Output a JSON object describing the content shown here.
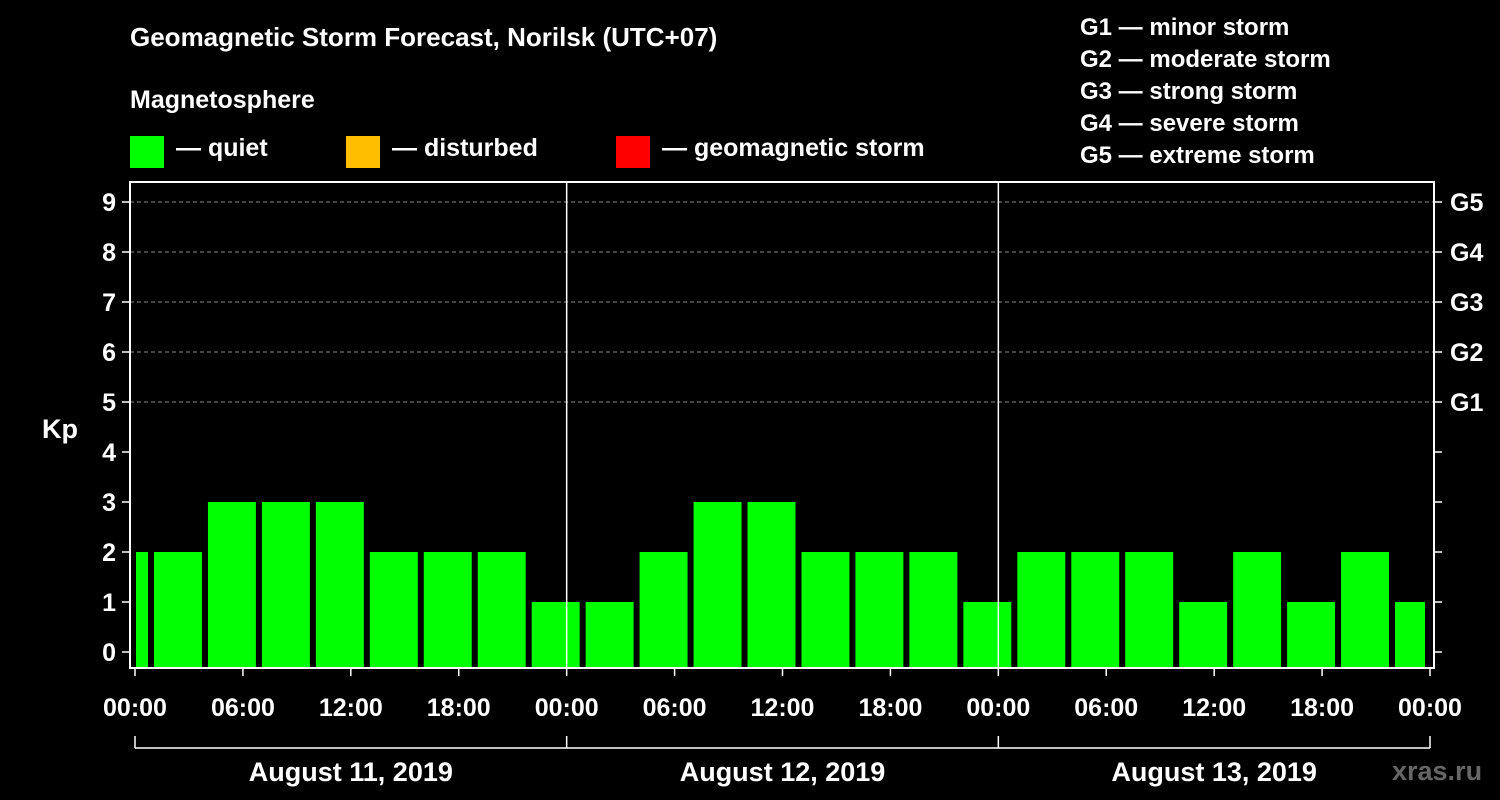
{
  "header": {
    "title": "Geomagnetic Storm Forecast, Norilsk (UTC+07)",
    "subtitle": "Magnetosphere"
  },
  "legend": [
    {
      "label": "— quiet",
      "color": "#00ff00"
    },
    {
      "label": "— disturbed",
      "color": "#ffbf00"
    },
    {
      "label": "— geomagnetic storm",
      "color": "#ff0000"
    }
  ],
  "g_levels": [
    "G1 — minor storm",
    "G2 — moderate storm",
    "G3 — strong storm",
    "G4 — severe storm",
    "G5 — extreme storm"
  ],
  "watermark": "xras.ru",
  "chart_data": {
    "type": "bar",
    "title": "Geomagnetic Storm Forecast, Norilsk (UTC+07)",
    "ylabel": "Kp",
    "ylim": [
      0,
      9
    ],
    "yticks": [
      "0",
      "1",
      "2",
      "3",
      "4",
      "5",
      "6",
      "7",
      "8",
      "9"
    ],
    "right_axis_labels": [
      {
        "kp": 5,
        "label": "G1"
      },
      {
        "kp": 6,
        "label": "G2"
      },
      {
        "kp": 7,
        "label": "G3"
      },
      {
        "kp": 8,
        "label": "G4"
      },
      {
        "kp": 9,
        "label": "G5"
      }
    ],
    "x_range_hours": [
      0,
      72
    ],
    "x_tick_labels": [
      "00:00",
      "06:00",
      "12:00",
      "18:00",
      "00:00",
      "06:00",
      "12:00",
      "18:00",
      "00:00",
      "06:00",
      "12:00",
      "18:00",
      "00:00"
    ],
    "days": [
      "August 11, 2019",
      "August 12, 2019",
      "August 13, 2019"
    ],
    "bars": [
      {
        "start_hour": 0,
        "end_hour": 1,
        "kp": 2,
        "level": "quiet"
      },
      {
        "start_hour": 1,
        "end_hour": 4,
        "kp": 2,
        "level": "quiet"
      },
      {
        "start_hour": 4,
        "end_hour": 7,
        "kp": 3,
        "level": "quiet"
      },
      {
        "start_hour": 7,
        "end_hour": 10,
        "kp": 3,
        "level": "quiet"
      },
      {
        "start_hour": 10,
        "end_hour": 13,
        "kp": 3,
        "level": "quiet"
      },
      {
        "start_hour": 13,
        "end_hour": 16,
        "kp": 2,
        "level": "quiet"
      },
      {
        "start_hour": 16,
        "end_hour": 19,
        "kp": 2,
        "level": "quiet"
      },
      {
        "start_hour": 19,
        "end_hour": 22,
        "kp": 2,
        "level": "quiet"
      },
      {
        "start_hour": 22,
        "end_hour": 25,
        "kp": 1,
        "level": "quiet"
      },
      {
        "start_hour": 25,
        "end_hour": 28,
        "kp": 1,
        "level": "quiet"
      },
      {
        "start_hour": 28,
        "end_hour": 31,
        "kp": 2,
        "level": "quiet"
      },
      {
        "start_hour": 31,
        "end_hour": 34,
        "kp": 3,
        "level": "quiet"
      },
      {
        "start_hour": 34,
        "end_hour": 37,
        "kp": 3,
        "level": "quiet"
      },
      {
        "start_hour": 37,
        "end_hour": 40,
        "kp": 2,
        "level": "quiet"
      },
      {
        "start_hour": 40,
        "end_hour": 43,
        "kp": 2,
        "level": "quiet"
      },
      {
        "start_hour": 43,
        "end_hour": 46,
        "kp": 2,
        "level": "quiet"
      },
      {
        "start_hour": 46,
        "end_hour": 49,
        "kp": 1,
        "level": "quiet"
      },
      {
        "start_hour": 49,
        "end_hour": 52,
        "kp": 2,
        "level": "quiet"
      },
      {
        "start_hour": 52,
        "end_hour": 55,
        "kp": 2,
        "level": "quiet"
      },
      {
        "start_hour": 55,
        "end_hour": 58,
        "kp": 2,
        "level": "quiet"
      },
      {
        "start_hour": 58,
        "end_hour": 61,
        "kp": 1,
        "level": "quiet"
      },
      {
        "start_hour": 61,
        "end_hour": 64,
        "kp": 2,
        "level": "quiet"
      },
      {
        "start_hour": 64,
        "end_hour": 67,
        "kp": 1,
        "level": "quiet"
      },
      {
        "start_hour": 67,
        "end_hour": 70,
        "kp": 2,
        "level": "quiet"
      },
      {
        "start_hour": 70,
        "end_hour": 72,
        "kp": 1,
        "level": "quiet"
      }
    ]
  }
}
